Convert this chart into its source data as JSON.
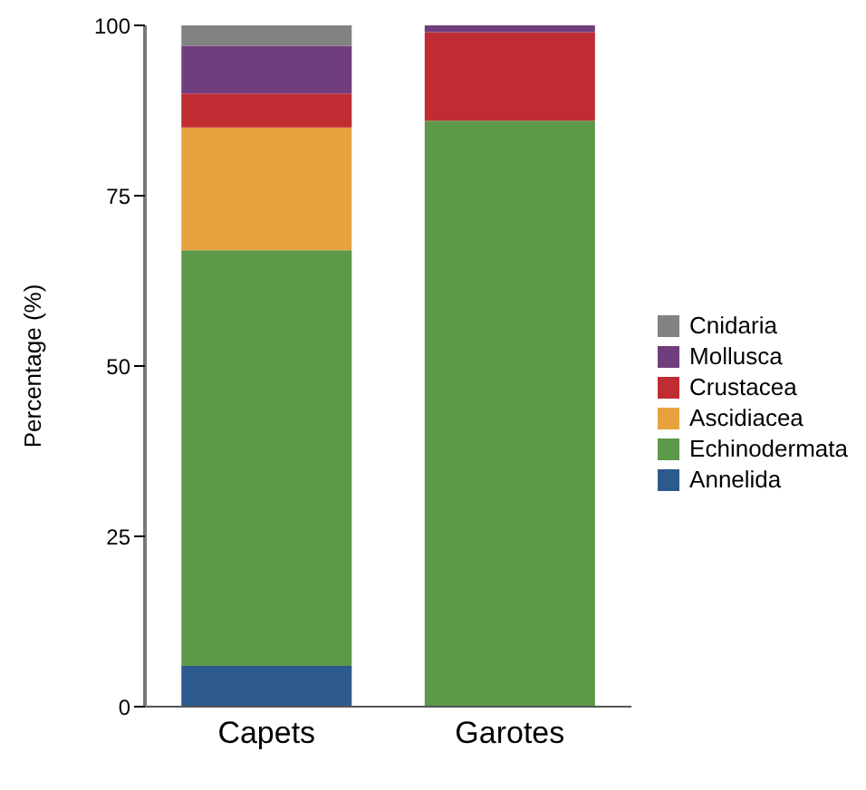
{
  "chart_data": {
    "type": "bar",
    "stacked": true,
    "ylabel": "Percentage (%)",
    "categories": [
      "Capets",
      "Garotes"
    ],
    "series": [
      {
        "name": "Annelida",
        "color": "#2d5a8c",
        "values": [
          6,
          0
        ]
      },
      {
        "name": "Echinodermata",
        "color": "#5e9849",
        "values": [
          61,
          86
        ]
      },
      {
        "name": "Ascidiacea",
        "color": "#e8a23d",
        "values": [
          18,
          0
        ]
      },
      {
        "name": "Crustacea",
        "color": "#bf2d32",
        "values": [
          5,
          13
        ]
      },
      {
        "name": "Mollusca",
        "color": "#713e7d",
        "values": [
          7,
          1
        ]
      },
      {
        "name": "Cnidaria",
        "color": "#818282",
        "values": [
          3,
          0
        ]
      }
    ],
    "ylim": [
      0,
      100
    ],
    "yticks": [
      0,
      25,
      50,
      75,
      100
    ],
    "grid": false,
    "legend": "right"
  }
}
